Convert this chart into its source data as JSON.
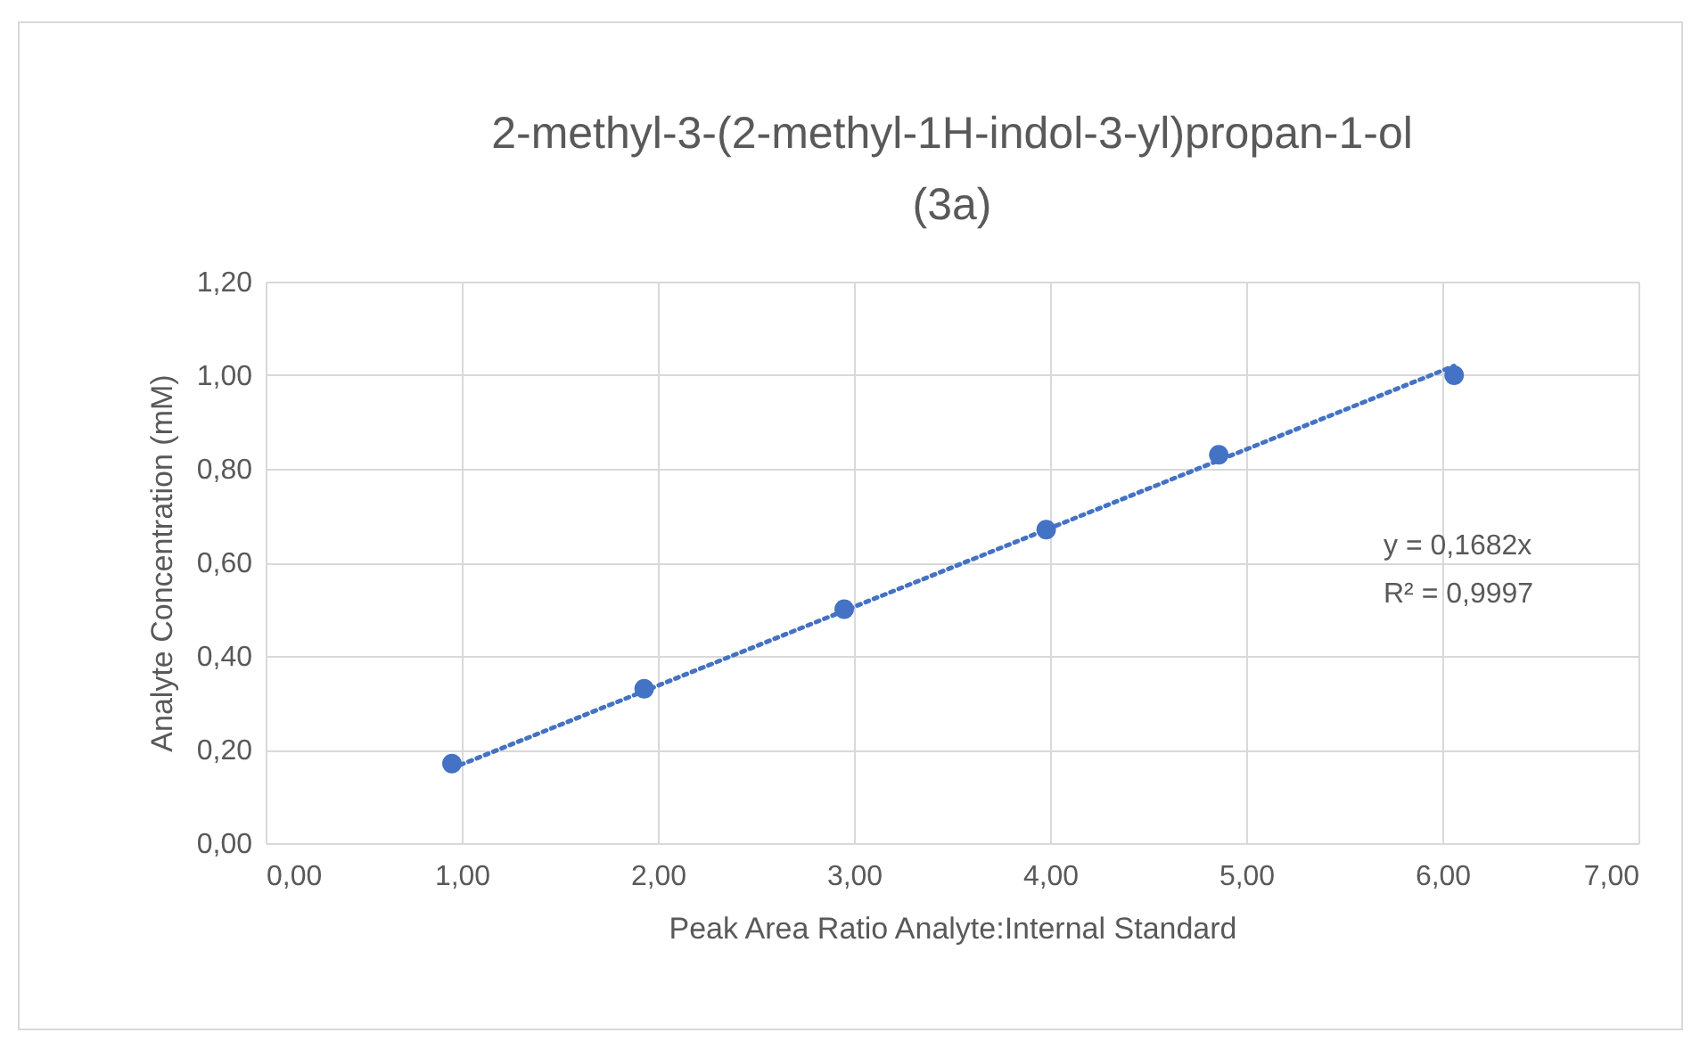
{
  "chart_data": {
    "type": "scatter",
    "title": "2-methyl-3-(2-methyl-1H-indol-3-yl)propan-1-ol (3a)",
    "xlabel": "Peak Area Ratio Analyte:Internal Standard",
    "ylabel": "Analyte Concentration (mM)",
    "series": [
      {
        "color": "#4472c4",
        "marker": "circle",
        "x": [
          0.95,
          1.93,
          2.95,
          3.98,
          4.86,
          6.06
        ],
        "values": [
          0.17,
          0.33,
          0.5,
          0.67,
          0.83,
          1.0
        ]
      },
      {
        "type": "line",
        "color": "#4472c4",
        "marker": "none",
        "line_style": "dotted",
        "x": [
          0.95,
          6.06
        ],
        "values": [
          0.16,
          1.02
        ]
      }
    ],
    "annotations": [
      "y = 0,1682x",
      "R² = 0,9997"
    ],
    "xlim": [
      0,
      7
    ],
    "ylim": [
      0,
      1.2
    ],
    "xticks": [
      {
        "value": 0,
        "label": "0,00"
      },
      {
        "value": 1,
        "label": "1,00"
      },
      {
        "value": 2,
        "label": "2,00"
      },
      {
        "value": 3,
        "label": "3,00"
      },
      {
        "value": 4,
        "label": "4,00"
      },
      {
        "value": 5,
        "label": "5,00"
      },
      {
        "value": 6,
        "label": "6,00"
      },
      {
        "value": 7,
        "label": "7,00"
      }
    ],
    "yticks": [
      {
        "value": 0,
        "label": "0,00"
      },
      {
        "value": 0.2,
        "label": "0,20"
      },
      {
        "value": 0.4,
        "label": "0,40"
      },
      {
        "value": 0.6,
        "label": "0,60"
      },
      {
        "value": 0.8,
        "label": "0,80"
      },
      {
        "value": 1,
        "label": "1,00"
      },
      {
        "value": 1.2,
        "label": "1,20"
      }
    ],
    "grid": true
  }
}
